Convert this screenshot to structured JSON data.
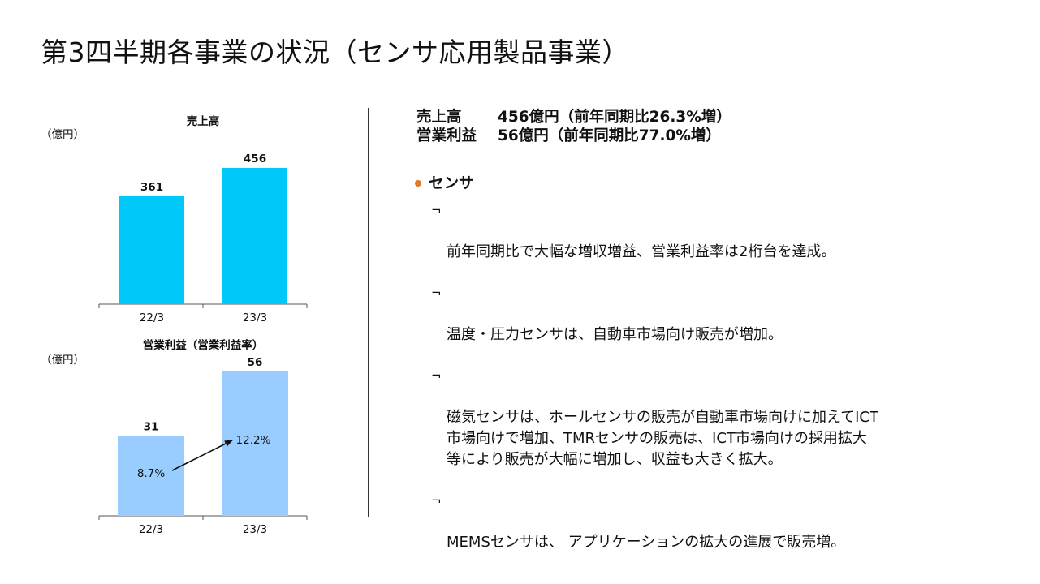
{
  "title": "第3四半期各事業の状況（センサ応用製品事業）",
  "charts": [
    {
      "title": "売上高",
      "unit": "（億円）",
      "chart_data": {
        "type": "bar",
        "title": "売上高",
        "ylabel": "（億円）",
        "categories": [
          "22/3",
          "23/3"
        ],
        "values": [
          361,
          456
        ],
        "ylim": [
          0,
          500
        ],
        "color": "#00c8f8"
      }
    },
    {
      "title": "営業利益（営業利益率）",
      "unit": "（億円）",
      "chart_data": {
        "type": "bar",
        "title": "営業利益（営業利益率）",
        "ylabel": "（億円）",
        "categories": [
          "22/3",
          "23/3"
        ],
        "values": [
          31,
          56
        ],
        "margin_labels": [
          "8.7%",
          "12.2%"
        ],
        "ylim": [
          0,
          62
        ],
        "color": "#99ccff",
        "annotation": "arrow 8.7% → 12.2%"
      }
    }
  ],
  "summary": {
    "sales_label": "売上高",
    "sales_value": "456億円（前年同期比26.3%増）",
    "profit_label": "営業利益",
    "profit_value": "56億円（前年同期比77.0%増）"
  },
  "section": {
    "heading": "センサ",
    "bullet_mark": "¬",
    "bullets": [
      "前年同期比で大幅な増収増益、営業利益率は2桁台を達成。",
      "温度・圧力センサは、自動車市場向け販売が増加。",
      "磁気センサは、ホールセンサの販売が自動車市場向けに加えてICT\n市場向けで増加、TMRセンサの販売は、ICT市場向けの採用拡大\n等により販売が大幅に増加し、収益も大きく拡大。",
      "MEMSセンサは、 アプリケーションの拡大の進展で販売増。"
    ]
  },
  "colors": {
    "accent_dot": "#e07b28"
  }
}
